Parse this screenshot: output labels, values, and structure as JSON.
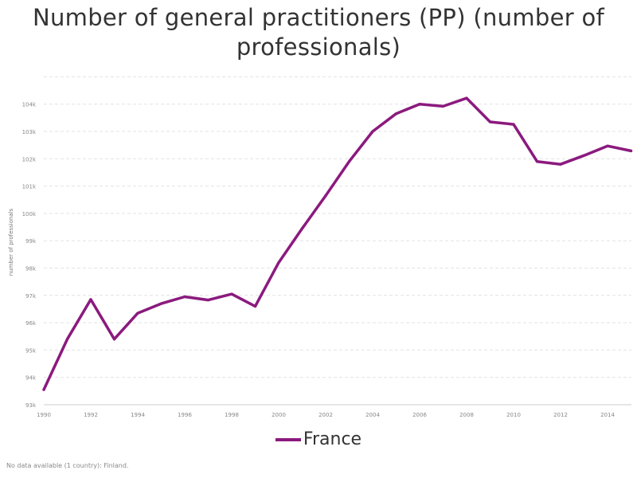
{
  "title": "Number of general practitioners (PP) (number of professionals)",
  "footnote": "No data available (1 country): Finland.",
  "colors": {
    "series": "#8b1a7e",
    "grid": "#e2e2e2",
    "axis_text": "#888888"
  },
  "chart_data": {
    "type": "line",
    "title": "Number of general practitioners (PP) (number of professionals)",
    "xlabel": "",
    "ylabel": "number of professionals",
    "xlim": [
      1990,
      2015
    ],
    "ylim": [
      93000,
      105000
    ],
    "grid": true,
    "legend_position": "bottom",
    "x_ticks": [
      "1990",
      "1992",
      "1994",
      "1996",
      "1998",
      "2000",
      "2002",
      "2004",
      "2006",
      "2008",
      "2010",
      "2012",
      "2014"
    ],
    "y_ticks": [
      "93k",
      "94k",
      "95k",
      "96k",
      "97k",
      "98k",
      "99k",
      "100k",
      "101k",
      "102k",
      "103k",
      "104k"
    ],
    "x": [
      1990,
      1991,
      1992,
      1993,
      1994,
      1995,
      1996,
      1997,
      1998,
      1999,
      2000,
      2001,
      2002,
      2003,
      2004,
      2005,
      2006,
      2007,
      2008,
      2009,
      2010,
      2011,
      2012,
      2013,
      2014,
      2015
    ],
    "series": [
      {
        "name": "France",
        "color": "#8b1a7e",
        "values": [
          93550,
          95400,
          96850,
          95400,
          96350,
          96700,
          96950,
          96830,
          97050,
          96600,
          98200,
          99450,
          100650,
          101900,
          103000,
          103650,
          104000,
          103920,
          104220,
          103350,
          103260,
          101900,
          101800,
          102120,
          102470,
          102290
        ]
      }
    ]
  }
}
